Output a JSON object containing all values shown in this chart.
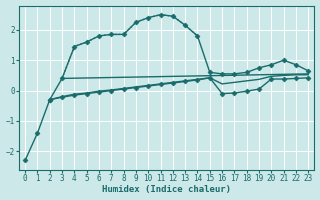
{
  "xlabel": "Humidex (Indice chaleur)",
  "bg_color": "#cce8e8",
  "grid_color": "#ffffff",
  "line_color": "#1a6b6b",
  "xlim": [
    -0.5,
    23.5
  ],
  "ylim": [
    -2.6,
    2.8
  ],
  "xticks": [
    0,
    1,
    2,
    3,
    4,
    5,
    6,
    7,
    8,
    9,
    10,
    11,
    12,
    13,
    14,
    15,
    16,
    17,
    18,
    19,
    20,
    21,
    22,
    23
  ],
  "yticks": [
    -2,
    -1,
    0,
    1,
    2
  ],
  "series": [
    {
      "x": [
        0,
        1,
        2,
        3,
        4,
        5,
        6,
        7,
        8,
        9,
        10,
        11,
        12,
        13,
        14,
        15,
        16,
        17,
        18,
        19,
        20,
        21,
        22,
        23
      ],
      "y": [
        -2.3,
        -1.4,
        -0.3,
        0.4,
        1.45,
        1.6,
        1.8,
        1.85,
        1.85,
        2.25,
        2.4,
        2.5,
        2.45,
        2.15,
        1.8,
        0.6,
        0.55,
        0.55,
        0.6,
        0.75,
        0.85,
        1.0,
        0.85,
        0.65
      ],
      "marker": "D",
      "linestyle": "-",
      "markersize": 2.5,
      "linewidth": 1.0
    },
    {
      "x": [
        3,
        4,
        5,
        6,
        7,
        8,
        9,
        10,
        11,
        12,
        13,
        14
      ],
      "y": [
        0.4,
        1.45,
        1.6,
        1.8,
        1.85,
        1.85,
        2.25,
        2.4,
        2.5,
        2.45,
        2.15,
        1.8
      ],
      "marker": null,
      "linestyle": ":",
      "markersize": 0,
      "linewidth": 1.0
    },
    {
      "x": [
        3,
        23
      ],
      "y": [
        0.4,
        0.55
      ],
      "marker": null,
      "linestyle": "-",
      "markersize": 0,
      "linewidth": 1.0
    },
    {
      "x": [
        2,
        3,
        4,
        5,
        6,
        7,
        8,
        9,
        10,
        11,
        12,
        13,
        14,
        15,
        16,
        17,
        18,
        19,
        20,
        21,
        22,
        23
      ],
      "y": [
        -0.3,
        -0.2,
        -0.12,
        -0.08,
        -0.02,
        0.02,
        0.07,
        0.12,
        0.17,
        0.22,
        0.27,
        0.32,
        0.37,
        0.42,
        0.22,
        0.27,
        0.32,
        0.37,
        0.47,
        0.5,
        0.52,
        0.52
      ],
      "marker": null,
      "linestyle": "-",
      "markersize": 0,
      "linewidth": 1.0
    },
    {
      "x": [
        2,
        3,
        4,
        5,
        6,
        7,
        8,
        9,
        10,
        11,
        12,
        13,
        14,
        15,
        16,
        17,
        18,
        19,
        20,
        21,
        22,
        23
      ],
      "y": [
        -0.3,
        -0.22,
        -0.15,
        -0.1,
        -0.05,
        0.0,
        0.05,
        0.1,
        0.15,
        0.2,
        0.25,
        0.3,
        0.35,
        0.42,
        -0.1,
        -0.08,
        -0.02,
        0.05,
        0.38,
        0.38,
        0.4,
        0.42
      ],
      "marker": "D",
      "linestyle": "-",
      "markersize": 2.5,
      "linewidth": 1.0
    }
  ]
}
